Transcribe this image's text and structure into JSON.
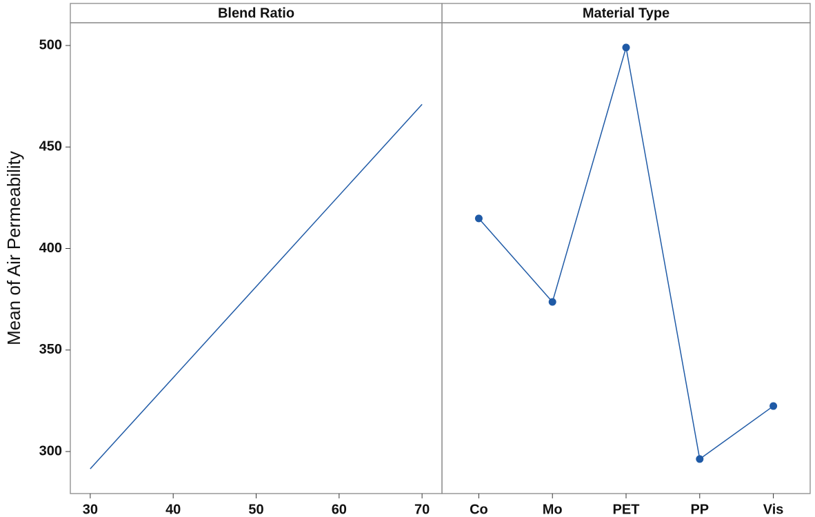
{
  "chart_data": [
    {
      "type": "line",
      "title": "Blend Ratio",
      "ylabel": "Mean of Air Permeability",
      "x": [
        30,
        70
      ],
      "values": [
        291.5,
        471
      ],
      "color": "#1f5aa6",
      "xlim": [
        27.6,
        72.4
      ],
      "xticks": [
        30,
        40,
        50,
        60,
        70
      ],
      "ylim": [
        279.3,
        511.2
      ],
      "yticks": [
        300,
        350,
        400,
        450,
        500
      ]
    },
    {
      "type": "line",
      "title": "Material Type",
      "categories": [
        "Co",
        "Mo",
        "PET",
        "PP",
        "Vis"
      ],
      "values": [
        414.8,
        373.7,
        499,
        296.3,
        322.4
      ],
      "color": "#1f5aa6",
      "markers": true,
      "ylim": [
        279.3,
        511.2
      ]
    }
  ]
}
